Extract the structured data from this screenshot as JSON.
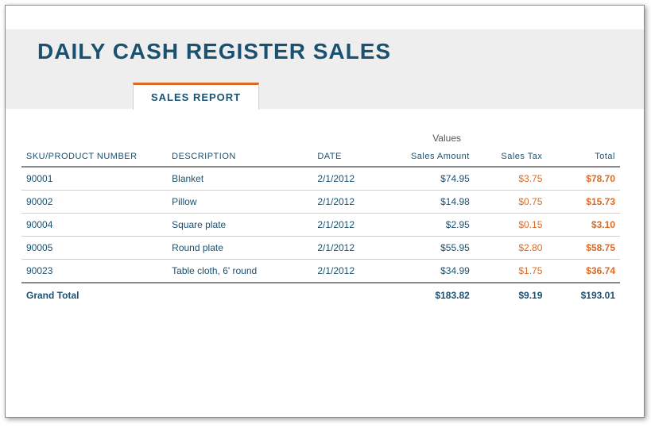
{
  "header": {
    "title": "DAILY CASH REGISTER SALES",
    "title_color": "#1a5170",
    "band_bg": "#eeeeee",
    "tab_label": "SALES REPORT",
    "tab_accent": "#d96b27"
  },
  "table": {
    "type": "table",
    "values_label": "Values",
    "columns": {
      "sku": "SKU/PRODUCT NUMBER",
      "description": "DESCRIPTION",
      "date": "DATE",
      "sales_amount": "Sales Amount",
      "sales_tax": "Sales Tax",
      "total": "Total"
    },
    "header_color": "#1a5170",
    "row_border_color": "#d0d0d0",
    "accent_color": "#d96b27",
    "text_color": "#1a5170",
    "rows": [
      {
        "sku": "90001",
        "description": "Blanket",
        "date": "2/1/2012",
        "sales_amount": "$74.95",
        "sales_tax": "$3.75",
        "total": "$78.70"
      },
      {
        "sku": "90002",
        "description": "Pillow",
        "date": "2/1/2012",
        "sales_amount": "$14.98",
        "sales_tax": "$0.75",
        "total": "$15.73"
      },
      {
        "sku": "90004",
        "description": "Square plate",
        "date": "2/1/2012",
        "sales_amount": "$2.95",
        "sales_tax": "$0.15",
        "total": "$3.10"
      },
      {
        "sku": "90005",
        "description": "Round plate",
        "date": "2/1/2012",
        "sales_amount": "$55.95",
        "sales_tax": "$2.80",
        "total": "$58.75"
      },
      {
        "sku": "90023",
        "description": "Table cloth, 6' round",
        "date": "2/1/2012",
        "sales_amount": "$34.99",
        "sales_tax": "$1.75",
        "total": "$36.74"
      }
    ],
    "footer": {
      "label": "Grand Total",
      "sales_amount": "$183.82",
      "sales_tax": "$9.19",
      "total": "$193.01"
    }
  }
}
